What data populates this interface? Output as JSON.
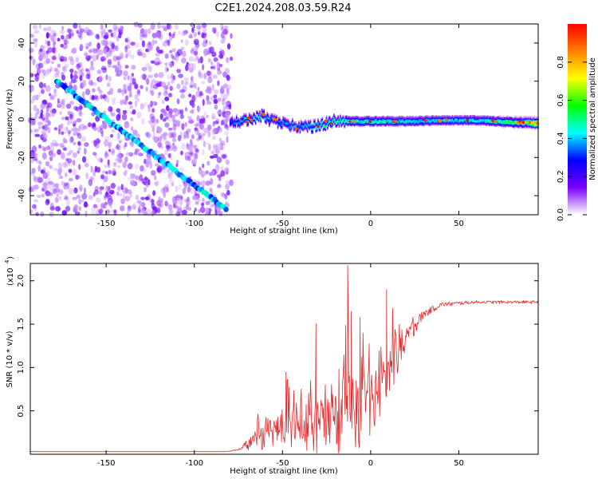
{
  "title": "C2E1.2024.208.03.59.R24",
  "chart_data": [
    {
      "type": "heatmap",
      "xlabel": "Height of straight line (km)",
      "ylabel": "Frequency (Hz)",
      "xlim": [
        -193,
        95
      ],
      "ylim": [
        -50,
        50
      ],
      "xticks": [
        -150,
        -100,
        -50,
        0,
        50
      ],
      "yticks": [
        -40,
        -20,
        0,
        20,
        40
      ],
      "colorbar": {
        "label": "Normalized spectral amplitude",
        "range": [
          0,
          1
        ],
        "ticks": [
          0.0,
          0.2,
          0.4,
          0.6,
          0.8
        ],
        "colormap": [
          "#ffffff",
          "#7a00ff",
          "#0000ff",
          "#00ffff",
          "#00ff00",
          "#ffff00",
          "#ff8000",
          "#ff0000"
        ]
      },
      "features": {
        "noise_region_x": [
          -193,
          -79
        ],
        "noise_amplitude": 0.15,
        "chirp_line": {
          "x": [
            -178,
            -82
          ],
          "y": [
            20,
            -47
          ],
          "amplitude": 0.28
        },
        "signal_band": {
          "x": [
            -80,
            -70,
            -62,
            -58,
            -50,
            -42,
            -35,
            -28,
            -22,
            -16,
            -10,
            0,
            20,
            40,
            60,
            80,
            95
          ],
          "y": [
            -1.5,
            -0.5,
            2,
            0,
            -2,
            -3.5,
            -4,
            -3,
            -1,
            -0.5,
            -1,
            -1,
            -1,
            -0.5,
            -0.5,
            -1.5,
            -2
          ],
          "amplitude": [
            0.35,
            0.45,
            0.5,
            0.4,
            0.4,
            0.4,
            0.45,
            0.5,
            0.55,
            0.55,
            0.5,
            0.5,
            0.45,
            0.45,
            0.45,
            0.6,
            0.9
          ]
        }
      }
    },
    {
      "type": "line",
      "xlabel": "Height of straight line (km)",
      "ylabel": "SNR (10 * v/v)",
      "y_multiplier": "(x10",
      "y_multiplier_exp": "4",
      "xlim": [
        -193,
        95
      ],
      "ylim": [
        0,
        2.2
      ],
      "xticks": [
        -150,
        -100,
        -50,
        0,
        50
      ],
      "yticks": [
        0.5,
        1.0,
        1.5,
        2.0
      ],
      "series": [
        {
          "color": "#e8292c",
          "envelope": {
            "x": [
              -193,
              -82,
              -75,
              -62,
              -52,
              -42,
              -35,
              -30,
              -20,
              -14,
              -5,
              0,
              10,
              20,
              30,
              40,
              60,
              80,
              95
            ],
            "base": [
              0.03,
              0.03,
              0.05,
              0.15,
              0.25,
              0.25,
              0.2,
              0.2,
              0.2,
              0.25,
              0.35,
              0.5,
              0.85,
              1.3,
              1.6,
              1.72,
              1.75,
              1.75,
              1.75
            ],
            "spread": [
              0.0,
              0.0,
              0.02,
              0.3,
              0.45,
              0.5,
              0.5,
              0.7,
              0.5,
              1.2,
              0.8,
              0.8,
              0.7,
              0.3,
              0.1,
              0.05,
              0.03,
              0.03,
              0.03
            ]
          },
          "peaks": [
            {
              "x": -13,
              "y": 2.18
            },
            {
              "x": -31,
              "y": 1.51
            },
            {
              "x": 9,
              "y": 1.9
            },
            {
              "x": -6,
              "y": 1.58
            },
            {
              "x": -11,
              "y": 1.65
            },
            {
              "x": -48,
              "y": 0.95
            }
          ]
        }
      ]
    }
  ]
}
